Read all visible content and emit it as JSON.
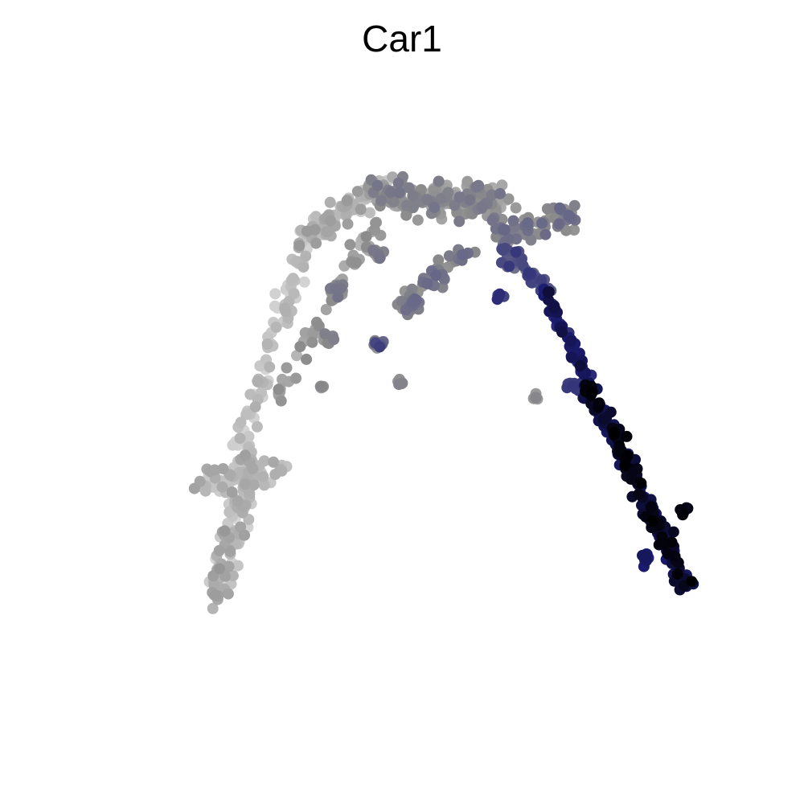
{
  "chart_data": {
    "type": "scatter",
    "title": "Car1",
    "xlabel": "",
    "ylabel": "",
    "axes_visible": false,
    "grid": false,
    "legend": "none",
    "color_scale": [
      "#e2e2e2",
      "#b9b9b9",
      "#8c8c8c",
      "#5a5a86",
      "#1c1c72",
      "#000000"
    ],
    "xlim": [
      0,
      100
    ],
    "ylim": [
      0,
      100
    ],
    "segments": [
      {
        "name": "left-branch-cluster",
        "from": [
          18.0,
          37.6
        ],
        "to": [
          28.8,
          39.4
        ],
        "n": 50,
        "spread": 2.2,
        "expr": [
          0.1,
          0.3
        ]
      },
      {
        "name": "left-branch-base",
        "from": [
          20.0,
          18.0
        ],
        "to": [
          25.0,
          42.0
        ],
        "n": 120,
        "spread": 1.6,
        "expr": [
          0.05,
          0.35
        ]
      },
      {
        "name": "left-branch-arc",
        "from": [
          24.0,
          43.0
        ],
        "to": [
          33.0,
          75.0
        ],
        "n": 80,
        "spread": 1.2,
        "expr": [
          0.05,
          0.25
        ]
      },
      {
        "name": "left-branch-upper",
        "from": [
          33.0,
          75.0
        ],
        "to": [
          45.0,
          84.0
        ],
        "n": 90,
        "spread": 1.5,
        "expr": [
          0.1,
          0.35
        ]
      },
      {
        "name": "inner-arc",
        "from": [
          28.0,
          49.0
        ],
        "to": [
          45.0,
          80.0
        ],
        "n": 60,
        "spread": 1.0,
        "expr": [
          0.2,
          0.4
        ]
      },
      {
        "name": "top-cluster",
        "from": [
          45.0,
          82.0
        ],
        "to": [
          62.0,
          81.0
        ],
        "n": 170,
        "spread": 2.4,
        "expr": [
          0.25,
          0.5
        ]
      },
      {
        "name": "right-wing",
        "from": [
          62.0,
          76.0
        ],
        "to": [
          74.0,
          79.0
        ],
        "n": 70,
        "spread": 1.6,
        "expr": [
          0.35,
          0.55
        ]
      },
      {
        "name": "mid-spur",
        "from": [
          47.0,
          64.0
        ],
        "to": [
          57.0,
          74.0
        ],
        "n": 45,
        "spread": 1.3,
        "expr": [
          0.35,
          0.55
        ]
      },
      {
        "name": "junction",
        "from": [
          63.0,
          74.0
        ],
        "to": [
          69.0,
          67.0
        ],
        "n": 45,
        "spread": 1.2,
        "expr": [
          0.5,
          0.72
        ]
      },
      {
        "name": "right-branch-upper",
        "from": [
          69.0,
          67.0
        ],
        "to": [
          75.0,
          53.0
        ],
        "n": 55,
        "spread": 0.7,
        "expr": [
          0.7,
          0.9
        ]
      },
      {
        "name": "right-branch-lower",
        "from": [
          75.0,
          53.0
        ],
        "to": [
          90.0,
          21.0
        ],
        "n": 190,
        "spread": 0.9,
        "expr": [
          0.8,
          1.0
        ]
      },
      {
        "name": "right-branch-side",
        "from": [
          72.0,
          53.0
        ],
        "to": [
          75.0,
          52.0
        ],
        "n": 20,
        "spread": 0.8,
        "expr": [
          0.6,
          0.75
        ]
      }
    ],
    "clusters": [
      {
        "x": 44.0,
        "y": 73.0,
        "n": 12,
        "spread": 0.8,
        "expr": [
          0.3,
          0.5
        ]
      },
      {
        "x": 38.0,
        "y": 67.5,
        "n": 12,
        "spread": 0.9,
        "expr": [
          0.3,
          0.5
        ]
      },
      {
        "x": 36.6,
        "y": 60.0,
        "n": 10,
        "spread": 0.8,
        "expr": [
          0.3,
          0.45
        ]
      },
      {
        "x": 44.0,
        "y": 59.0,
        "n": 10,
        "spread": 0.9,
        "expr": [
          0.35,
          0.7
        ]
      },
      {
        "x": 49.0,
        "y": 65.5,
        "n": 10,
        "spread": 0.9,
        "expr": [
          0.35,
          0.55
        ]
      },
      {
        "x": 47.0,
        "y": 53.0,
        "n": 5,
        "spread": 0.5,
        "expr": [
          0.3,
          0.45
        ]
      },
      {
        "x": 35.8,
        "y": 52.5,
        "n": 5,
        "spread": 0.5,
        "expr": [
          0.3,
          0.45
        ]
      },
      {
        "x": 67.4,
        "y": 50.7,
        "n": 6,
        "spread": 0.5,
        "expr": [
          0.3,
          0.45
        ]
      },
      {
        "x": 62.0,
        "y": 66.5,
        "n": 5,
        "spread": 0.6,
        "expr": [
          0.6,
          0.75
        ]
      },
      {
        "x": 84.0,
        "y": 26.0,
        "n": 10,
        "spread": 0.7,
        "expr": [
          0.75,
          0.85
        ]
      },
      {
        "x": 89.5,
        "y": 33.0,
        "n": 6,
        "spread": 0.5,
        "expr": [
          0.95,
          1.0
        ]
      }
    ]
  }
}
